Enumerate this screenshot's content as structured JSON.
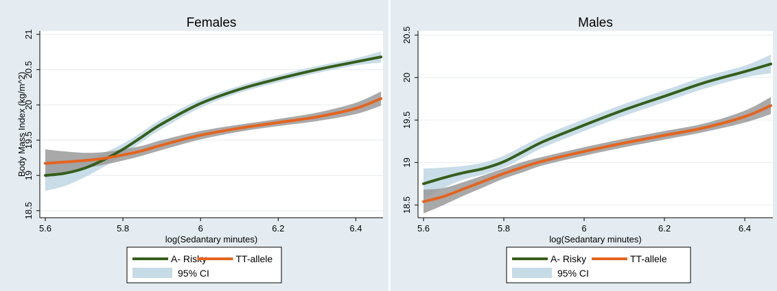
{
  "colors": {
    "a_risky": "#355e1b",
    "tt_allele": "#e4641e",
    "ci_a_risky": "#c5dbe6",
    "ci_tt": "#9a9a9a",
    "background": "#e4ecf1",
    "plot_area": "#ffffff",
    "grid": "#e6ebee"
  },
  "chart_data": [
    {
      "type": "line",
      "title": "Females",
      "xlabel": "log(Sedantary minutes)",
      "ylabel": "Body Mass Index (kg/m^2)",
      "xlim": [
        5.6,
        6.47
      ],
      "ylim": [
        18.4,
        21.05
      ],
      "xticks": [
        "5.6",
        "5.8",
        "6",
        "6.2",
        "6.4"
      ],
      "yticks": [
        "18.5",
        "19",
        "19.5",
        "20",
        "20.5",
        "21"
      ],
      "x": [
        5.6,
        5.65,
        5.7,
        5.75,
        5.8,
        5.85,
        5.9,
        6.0,
        6.1,
        6.2,
        6.3,
        6.4,
        6.465
      ],
      "series": [
        {
          "name": "A- Risky",
          "values": [
            19.0,
            19.03,
            19.1,
            19.22,
            19.37,
            19.55,
            19.73,
            20.02,
            20.22,
            20.37,
            20.5,
            20.61,
            20.68
          ],
          "ci_low": [
            18.78,
            18.85,
            18.97,
            19.12,
            19.29,
            19.48,
            19.66,
            19.96,
            20.17,
            20.32,
            20.45,
            20.56,
            20.6
          ],
          "ci_high": [
            19.22,
            19.21,
            19.23,
            19.32,
            19.45,
            19.62,
            19.8,
            20.08,
            20.27,
            20.42,
            20.55,
            20.66,
            20.76
          ]
        },
        {
          "name": "TT-allele",
          "values": [
            19.17,
            19.19,
            19.21,
            19.24,
            19.29,
            19.35,
            19.43,
            19.57,
            19.67,
            19.75,
            19.83,
            19.95,
            20.09
          ],
          "ci_low": [
            18.97,
            19.04,
            19.1,
            19.15,
            19.21,
            19.28,
            19.36,
            19.51,
            19.62,
            19.7,
            19.77,
            19.87,
            19.99
          ],
          "ci_high": [
            19.37,
            19.34,
            19.32,
            19.33,
            19.37,
            19.42,
            19.5,
            19.63,
            19.72,
            19.8,
            19.89,
            20.03,
            20.19
          ]
        }
      ],
      "legend": {
        "position": "bottom",
        "entries": [
          "A- Risky",
          "TT-allele",
          "95% CI"
        ]
      }
    },
    {
      "type": "line",
      "title": "Males",
      "xlabel": "log(Sedantary minutes)",
      "ylabel": "",
      "xlim": [
        5.6,
        6.47
      ],
      "ylim": [
        18.35,
        20.55
      ],
      "xticks": [
        "5.6",
        "5.8",
        "6",
        "6.2",
        "6.4"
      ],
      "yticks": [
        "18.5",
        "19",
        "19.5",
        "20",
        "20.5"
      ],
      "x": [
        5.6,
        5.65,
        5.7,
        5.75,
        5.8,
        5.85,
        5.9,
        6.0,
        6.1,
        6.2,
        6.3,
        6.4,
        6.465
      ],
      "series": [
        {
          "name": "A- Risky",
          "values": [
            18.75,
            18.82,
            18.88,
            18.93,
            19.01,
            19.13,
            19.25,
            19.44,
            19.62,
            19.78,
            19.94,
            20.07,
            20.16
          ],
          "ci_low": [
            18.57,
            18.7,
            18.8,
            18.86,
            18.94,
            19.06,
            19.18,
            19.37,
            19.55,
            19.71,
            19.87,
            20.0,
            20.05
          ],
          "ci_high": [
            18.93,
            18.94,
            18.96,
            19.0,
            19.08,
            19.2,
            19.32,
            19.51,
            19.69,
            19.85,
            20.01,
            20.14,
            20.27
          ]
        },
        {
          "name": "TT-allele",
          "values": [
            18.54,
            18.6,
            18.69,
            18.78,
            18.87,
            18.95,
            19.02,
            19.13,
            19.23,
            19.32,
            19.41,
            19.54,
            19.67
          ],
          "ci_low": [
            18.4,
            18.5,
            18.61,
            18.71,
            18.81,
            18.89,
            18.97,
            19.08,
            19.18,
            19.27,
            19.36,
            19.47,
            19.57
          ],
          "ci_high": [
            18.68,
            18.7,
            18.77,
            18.85,
            18.93,
            19.01,
            19.07,
            19.18,
            19.28,
            19.37,
            19.46,
            19.61,
            19.77
          ]
        }
      ],
      "legend": {
        "position": "bottom",
        "entries": [
          "A- Risky",
          "TT-allele",
          "95% CI"
        ]
      }
    }
  ]
}
